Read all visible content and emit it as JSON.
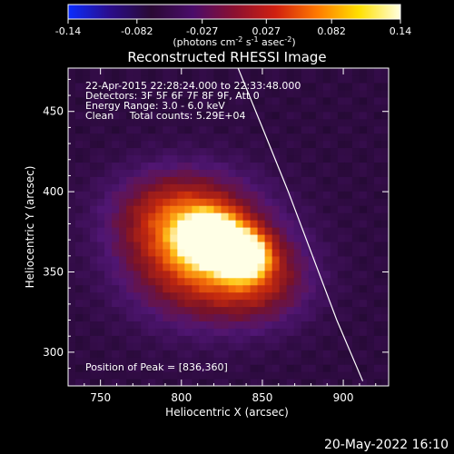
{
  "colorbar": {
    "ticks": [
      "-0.14",
      "-0.082",
      "-0.027",
      "0.027",
      "0.082",
      "0.14"
    ],
    "tick_values": [
      -0.14,
      -0.082,
      -0.027,
      0.027,
      0.082,
      0.14
    ],
    "range": [
      -0.14,
      0.14
    ],
    "colors": [
      "#0a2cff",
      "#2a0d8c",
      "#2a0a33",
      "#4a0c6a",
      "#8b1030",
      "#d02010",
      "#ff7a00",
      "#ffe000",
      "#ffffe0"
    ],
    "unit_main": "(photons cm",
    "unit_exp1": "-2",
    "unit_mid": " s",
    "unit_exp2": "-1",
    "unit_end": " asec",
    "unit_exp3": "-2",
    "unit_close": ")"
  },
  "chart_data": {
    "type": "heatmap",
    "title": "Reconstructed RHESSI Image",
    "xlabel": "Heliocentric X (arcsec)",
    "ylabel": "Heliocentric Y (arcsec)",
    "xlim": [
      730,
      928
    ],
    "ylim": [
      279,
      477
    ],
    "xticks": [
      750,
      800,
      850,
      900
    ],
    "yticks": [
      300,
      350,
      400,
      450
    ],
    "annotations": [
      "22-Apr-2015 22:28:24.000 to 22:33:48.000",
      "Detectors: 3F 5F 6F 7F 8F 9F, Att 0",
      "Energy Range: 3.0 - 6.0 keV",
      "Clean     Total counts: 5.29E+04"
    ],
    "peak_label": "Position of Peak = [836,360]",
    "peak": [
      836,
      360
    ],
    "sources": [
      {
        "x": 818,
        "y": 371,
        "sx": 12,
        "sy": 10,
        "amp": 0.14
      },
      {
        "x": 838,
        "y": 361,
        "sx": 10,
        "sy": 9,
        "amp": 0.13
      },
      {
        "x": 812,
        "y": 362,
        "sx": 30,
        "sy": 26,
        "amp": 0.085
      },
      {
        "x": 795,
        "y": 388,
        "sx": 26,
        "sy": 18,
        "amp": 0.04
      },
      {
        "x": 848,
        "y": 345,
        "sx": 22,
        "sy": 18,
        "amp": 0.04
      }
    ],
    "background": 0.012,
    "limb_curve": [
      [
        835,
        477
      ],
      [
        850,
        440
      ],
      [
        866,
        400
      ],
      [
        881,
        360
      ],
      [
        896,
        320
      ],
      [
        912,
        282
      ]
    ]
  },
  "timestamp": "20-May-2022 16:10"
}
